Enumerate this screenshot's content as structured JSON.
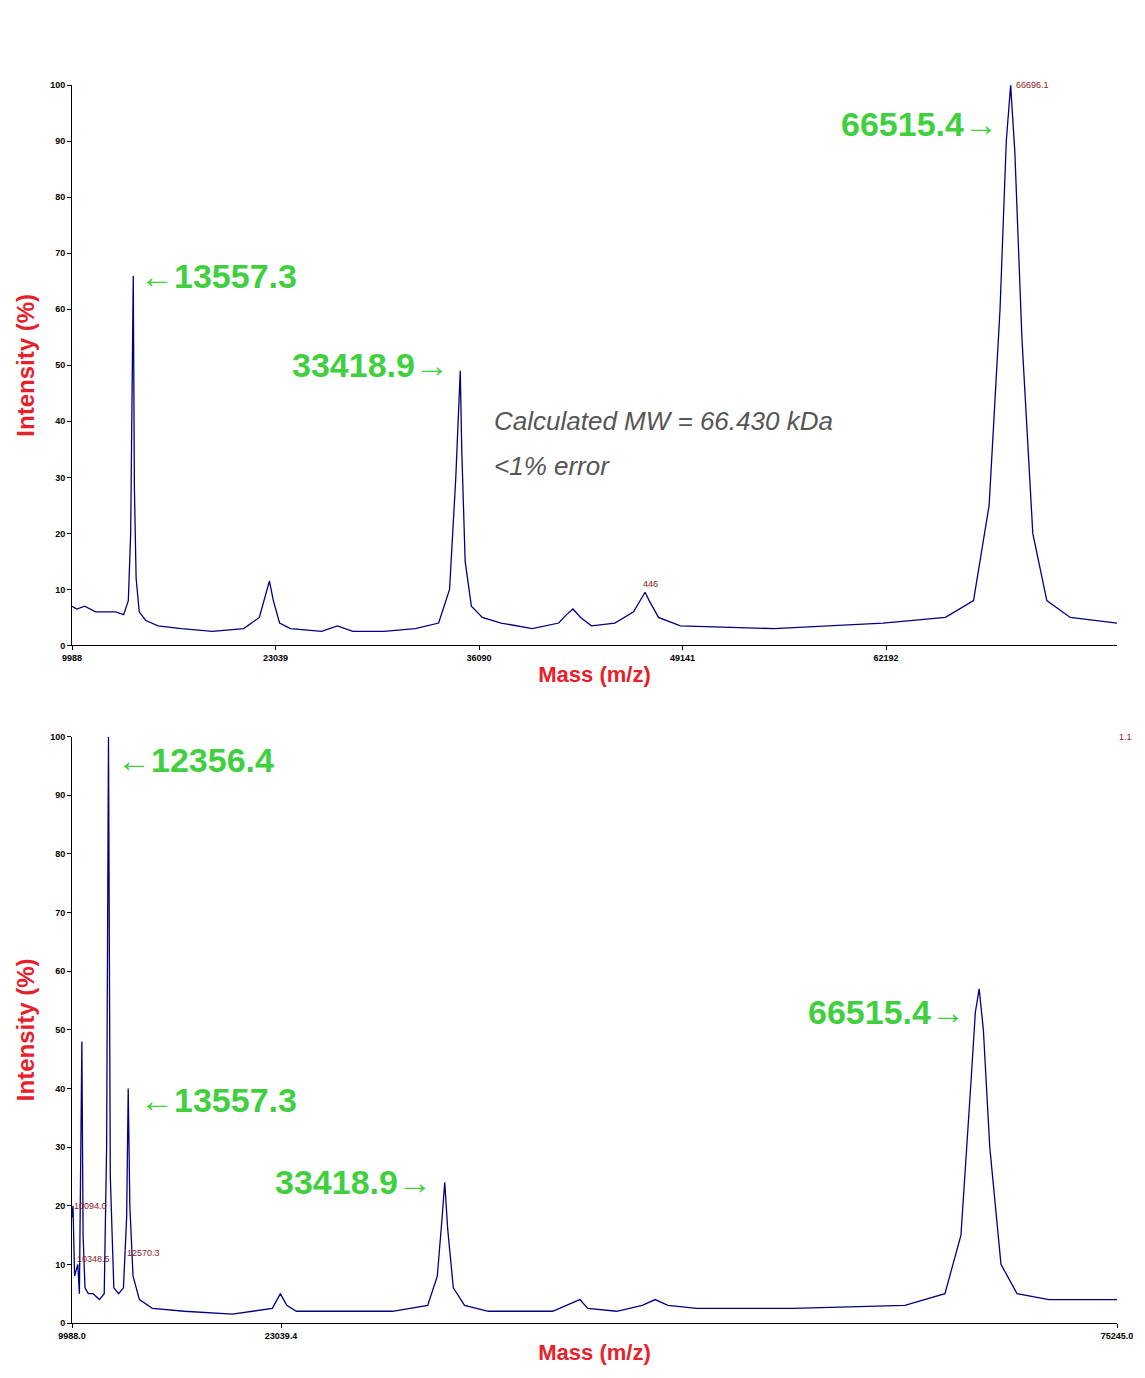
{
  "chart_data": [
    {
      "type": "line",
      "x_label": "Mass (m/z)",
      "y_label": "Intensity (%)",
      "color": "#000080",
      "x": [
        9988,
        10300,
        10800,
        11500,
        12200,
        12800,
        13300,
        13600,
        13750,
        13850,
        13916,
        13990,
        14100,
        14300,
        14700,
        15500,
        17000,
        19000,
        21000,
        22000,
        22400,
        22650,
        22900,
        23300,
        24000,
        26000,
        27000,
        28000,
        30000,
        32000,
        33500,
        34200,
        34600,
        34800,
        34886,
        34980,
        35200,
        35600,
        36300,
        37500,
        39500,
        41200,
        41700,
        42111,
        42600,
        43300,
        44800,
        46000,
        46500,
        46737,
        47000,
        47600,
        49000,
        55000,
        62000,
        66000,
        67800,
        68800,
        69500,
        69900,
        70180,
        70450,
        70900,
        71600,
        72500,
        74000,
        77000
      ],
      "values": [
        7,
        6.5,
        7,
        6,
        6,
        6,
        5.5,
        8,
        20,
        48,
        66,
        28,
        12,
        6,
        4.5,
        3.5,
        3,
        2.5,
        3,
        5,
        9,
        11.5,
        8,
        4,
        3,
        2.5,
        3.5,
        2.5,
        2.5,
        3,
        4,
        10,
        30,
        45,
        49,
        35,
        15,
        7,
        5,
        4,
        3,
        4,
        5.5,
        6.5,
        5,
        3.5,
        4,
        6,
        8.5,
        9.5,
        8,
        5,
        3.5,
        3,
        4,
        5,
        8,
        25,
        60,
        90,
        100,
        88,
        55,
        20,
        8,
        5,
        4
      ],
      "xlim": [
        9988,
        77000
      ],
      "xticks": [
        9988,
        23039,
        36090,
        49141,
        62192
      ],
      "ylim": [
        0,
        100
      ],
      "yticks": [
        0,
        10,
        20,
        30,
        40,
        50,
        60,
        70,
        80,
        90,
        100
      ],
      "peak_labels": [
        {
          "text": "←13557.3",
          "x": 14250,
          "y": 66
        },
        {
          "text": "33418.9→",
          "x": 34300,
          "y": 50
        },
        {
          "text": "66515.4→",
          "x": 69500,
          "y": 93
        }
      ],
      "notes": [
        {
          "text": "Calculated MW = 66.430 kDa",
          "x": 36900,
          "y": 40
        },
        {
          "text": "<1% error",
          "x": 36900,
          "y": 32
        }
      ],
      "peak_values": [
        {
          "text": "66696.1",
          "x": 70400,
          "y": 100
        },
        {
          "text": "446",
          "x": 46500,
          "y": 11
        }
      ]
    },
    {
      "type": "line",
      "x_label": "Mass (m/z)",
      "y_label": "Intensity (%)",
      "color": "#000080",
      "x": [
        9988,
        10050,
        10150,
        10350,
        10450,
        10550,
        10604,
        10680,
        10800,
        11000,
        11300,
        11700,
        12000,
        12150,
        12266,
        12380,
        12600,
        12900,
        13200,
        13400,
        13498,
        13600,
        13800,
        14200,
        15000,
        17000,
        20000,
        22500,
        23000,
        23400,
        24000,
        26000,
        30000,
        32200,
        32800,
        33100,
        33264,
        33450,
        33800,
        34500,
        36000,
        40000,
        41300,
        41700,
        42200,
        44000,
        45600,
        46400,
        47200,
        49000,
        55000,
        62000,
        64500,
        65500,
        66100,
        66400,
        66638,
        66900,
        67300,
        68000,
        69000,
        71000,
        75245
      ],
      "values": [
        18,
        20,
        8,
        10,
        5,
        30,
        48,
        15,
        6,
        5,
        5,
        4,
        5,
        30,
        100,
        25,
        6,
        5,
        6,
        18,
        40,
        20,
        8,
        4,
        2.5,
        2,
        1.5,
        2.5,
        5,
        3,
        2,
        2,
        2,
        3,
        8,
        18,
        24,
        16,
        6,
        3,
        2,
        2,
        3.5,
        4,
        2.5,
        2,
        3,
        4,
        3,
        2.5,
        2.5,
        3,
        5,
        15,
        40,
        53,
        57,
        50,
        30,
        10,
        5,
        4,
        4
      ],
      "xlim": [
        9988,
        75245
      ],
      "xticks": [
        {
          "value": 9988,
          "label": "9988.0"
        },
        {
          "value": 23039.4,
          "label": "23039.4"
        },
        {
          "value": 75245,
          "label": "75245.0"
        }
      ],
      "ylim": [
        0,
        100
      ],
      "yticks": [
        0,
        10,
        20,
        30,
        40,
        50,
        60,
        70,
        80,
        90,
        100
      ],
      "peak_labels": [
        {
          "text": "←12356.4",
          "x": 12700,
          "y": 96
        },
        {
          "text": "←13557.3",
          "x": 14100,
          "y": 38
        },
        {
          "text": "33418.9→",
          "x": 32600,
          "y": 24
        },
        {
          "text": "66515.4→",
          "x": 65900,
          "y": 53
        }
      ],
      "notes": [],
      "peak_values": [
        {
          "text": "10094.0",
          "x": 10000,
          "y": 20
        },
        {
          "text": "10348.5",
          "x": 10150,
          "y": 11
        },
        {
          "text": "12570.3",
          "x": 13300,
          "y": 12
        },
        {
          "text": "1.1",
          "x": 75245,
          "y": 100
        }
      ]
    }
  ]
}
